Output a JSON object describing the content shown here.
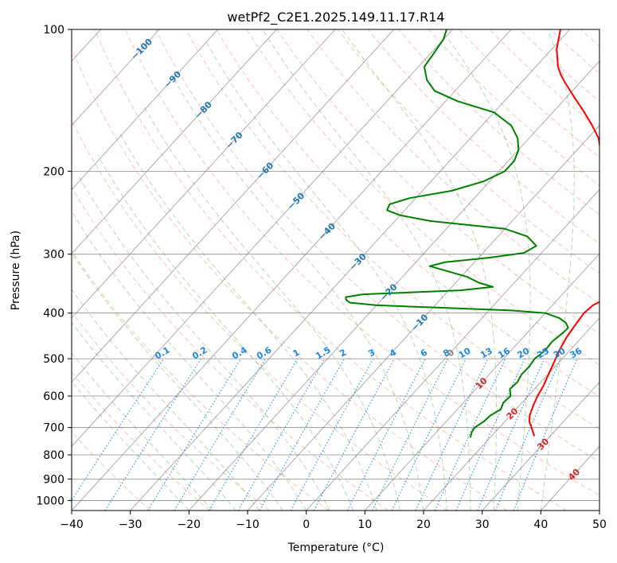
{
  "chart_data": {
    "type": "line",
    "subtype": "skew-T log-p diagram",
    "title": "wetPf2_C2E1.2025.149.11.17.R14",
    "xlabel": "Temperature (°C)",
    "ylabel": "Pressure (hPa)",
    "xlim": [
      -40,
      50
    ],
    "ylim": [
      1050,
      100
    ],
    "y_scale": "log",
    "x_ticks": [
      -40,
      -30,
      -20,
      -10,
      0,
      10,
      20,
      30,
      40,
      50
    ],
    "x_tick_labels": [
      "−40",
      "−30",
      "−20",
      "−10",
      "0",
      "10",
      "20",
      "30",
      "40",
      "50"
    ],
    "y_ticks": [
      100,
      200,
      300,
      400,
      500,
      600,
      700,
      800,
      900,
      1000
    ],
    "y_tick_labels": [
      "100",
      "200",
      "300",
      "400",
      "500",
      "600",
      "700",
      "800",
      "900",
      "1000"
    ],
    "grid": true,
    "series": [
      {
        "color": "#ff0000",
        "points": [
          [
            730,
            27.3
          ],
          [
            700,
            25.5
          ],
          [
            680,
            24.2
          ],
          [
            660,
            23.3
          ],
          [
            630,
            22.4
          ],
          [
            600,
            21.6
          ],
          [
            570,
            21.0
          ],
          [
            540,
            20.1
          ],
          [
            510,
            19.2
          ],
          [
            480,
            18.2
          ],
          [
            450,
            17.4
          ],
          [
            420,
            16.9
          ],
          [
            400,
            16.6
          ],
          [
            385,
            16.9
          ],
          [
            375,
            17.9
          ],
          [
            365,
            16.9
          ],
          [
            355,
            16.2
          ],
          [
            330,
            13.8
          ],
          [
            300,
            10.5
          ],
          [
            270,
            7.8
          ],
          [
            250,
            6.0
          ],
          [
            230,
            3.3
          ],
          [
            210,
            -0.2
          ],
          [
            190,
            -4.0
          ],
          [
            170,
            -8.2
          ],
          [
            160,
            -11.2
          ],
          [
            150,
            -14.6
          ],
          [
            140,
            -18.4
          ],
          [
            130,
            -22.4
          ],
          [
            125,
            -24.4
          ],
          [
            120,
            -26.2
          ],
          [
            110,
            -29.2
          ],
          [
            100,
            -31.6
          ]
        ]
      },
      {
        "color": "#008000",
        "points": [
          [
            735,
            16.6
          ],
          [
            715,
            16.0
          ],
          [
            700,
            15.8
          ],
          [
            680,
            16.4
          ],
          [
            660,
            16.6
          ],
          [
            640,
            17.4
          ],
          [
            620,
            16.8
          ],
          [
            600,
            17.0
          ],
          [
            580,
            15.8
          ],
          [
            560,
            16.0
          ],
          [
            540,
            15.5
          ],
          [
            520,
            15.6
          ],
          [
            500,
            15.3
          ],
          [
            480,
            15.8
          ],
          [
            460,
            15.6
          ],
          [
            440,
            16.1
          ],
          [
            430,
            16.2
          ],
          [
            420,
            15.1
          ],
          [
            410,
            13.2
          ],
          [
            400,
            10.0
          ],
          [
            395,
            4.0
          ],
          [
            390,
            -8.0
          ],
          [
            385,
            -20.0
          ],
          [
            380,
            -25.0
          ],
          [
            375,
            -26.0
          ],
          [
            370,
            -26.5
          ],
          [
            365,
            -24.0
          ],
          [
            358,
            -8.0
          ],
          [
            352,
            -3.0
          ],
          [
            345,
            -6.0
          ],
          [
            335,
            -9.0
          ],
          [
            318,
            -17.0
          ],
          [
            312,
            -15.0
          ],
          [
            305,
            -8.0
          ],
          [
            298,
            -3.0
          ],
          [
            288,
            -2.0
          ],
          [
            275,
            -5.0
          ],
          [
            265,
            -10.0
          ],
          [
            255,
            -24.0
          ],
          [
            248,
            -30.0
          ],
          [
            242,
            -33.0
          ],
          [
            235,
            -33.5
          ],
          [
            228,
            -31.0
          ],
          [
            220,
            -25.0
          ],
          [
            210,
            -21.0
          ],
          [
            200,
            -19.0
          ],
          [
            190,
            -19.0
          ],
          [
            180,
            -20.0
          ],
          [
            170,
            -22.0
          ],
          [
            160,
            -25.0
          ],
          [
            150,
            -30.0
          ],
          [
            142,
            -38.0
          ],
          [
            135,
            -43.5
          ],
          [
            128,
            -46.5
          ],
          [
            120,
            -49.0
          ],
          [
            112,
            -49.5
          ],
          [
            105,
            -50.0
          ],
          [
            100,
            -51.0
          ]
        ]
      }
    ],
    "dry_adiabat_labels": [
      "−100",
      "−90",
      "−80",
      "−70",
      "−60",
      "−50",
      "−40",
      "−30",
      "−20",
      "−10",
      "0",
      "10",
      "20",
      "30",
      "40"
    ],
    "mixing_ratio_labels": [
      "0.1",
      "0.2",
      "0.4",
      "0.6",
      "1",
      "1.5",
      "2",
      "3",
      "4",
      "6",
      "8",
      "10",
      "13",
      "16",
      "20",
      "25",
      "30",
      "36"
    ],
    "colors": {
      "temperature": "#ff0000",
      "dewpoint": "#008000",
      "dry_adiabat": "#f6a489",
      "moist_adiabat": "#7fbf7f",
      "mixing_ratio": "#1e88e5",
      "isotherm_label_blue": "#1f77b4",
      "isotherm_label_red": "#d62728",
      "grid": "#808080"
    }
  }
}
